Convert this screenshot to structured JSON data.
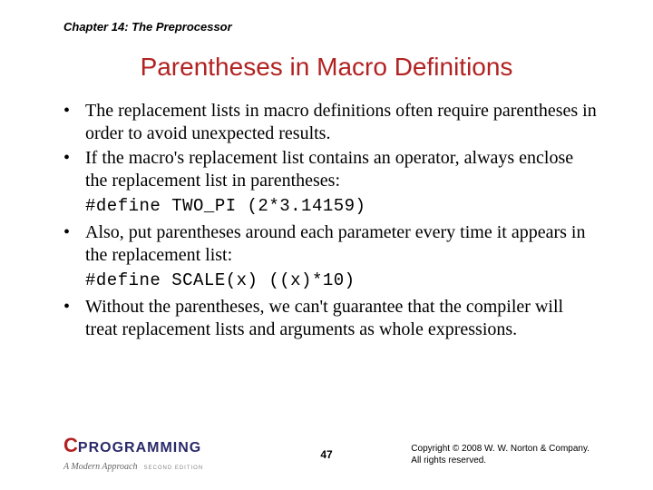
{
  "chapter_header": "Chapter 14: The Preprocessor",
  "slide_title": "Parentheses in Macro Definitions",
  "bullets": {
    "b1": "The replacement lists in macro definitions often require parentheses in order to avoid unexpected results.",
    "b2": "If the macro's replacement list contains an operator, always enclose the replacement list in parentheses:",
    "b3": "Also, put parentheses around each parameter every time it appears in the replacement list:",
    "b4": "Without the parentheses, we can't guarantee that the compiler will treat replacement lists and arguments as whole expressions."
  },
  "code": {
    "c1": "#define TWO_PI (2*3.14159)",
    "c2": "#define SCALE(x) ((x)*10)"
  },
  "footer": {
    "logo_c": "C",
    "logo_prog": "PROGRAMMING",
    "logo_sub": "A Modern Approach",
    "logo_edition": "SECOND EDITION",
    "page": "47",
    "copyright_line1": "Copyright © 2008 W. W. Norton & Company.",
    "copyright_line2": "All rights reserved."
  },
  "bullet_marker": "•"
}
